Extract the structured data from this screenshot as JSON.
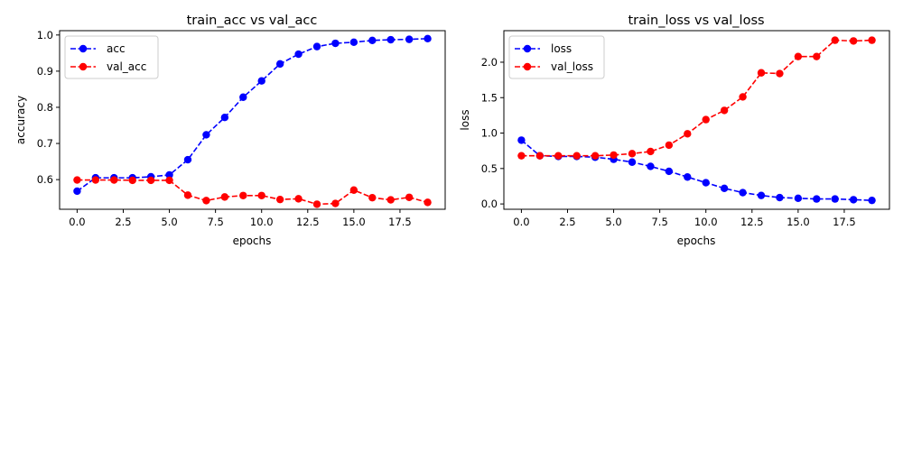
{
  "chart_data": [
    {
      "type": "line",
      "title": "train_acc vs val_acc",
      "xlabel": "epochs",
      "ylabel": "accuracy",
      "xlim": [
        -0.95,
        19.95
      ],
      "ylim": [
        0.518,
        1.012
      ],
      "xticks": [
        0,
        2.5,
        5,
        7.5,
        10,
        12.5,
        15,
        17.5
      ],
      "xtick_labels": [
        "0.0",
        "2.5",
        "5.0",
        "7.5",
        "10.0",
        "12.5",
        "15.0",
        "17.5"
      ],
      "yticks": [
        0.6,
        0.7,
        0.8,
        0.9,
        1.0
      ],
      "ytick_labels": [
        "0.6",
        "0.7",
        "0.8",
        "0.9",
        "1.0"
      ],
      "legend_position": "upper-left",
      "x": [
        0,
        1,
        2,
        3,
        4,
        5,
        6,
        7,
        8,
        9,
        10,
        11,
        12,
        13,
        14,
        15,
        16,
        17,
        18,
        19
      ],
      "series": [
        {
          "name": "acc",
          "color": "#0000ff",
          "values": [
            0.568,
            0.605,
            0.605,
            0.605,
            0.608,
            0.613,
            0.655,
            0.724,
            0.772,
            0.828,
            0.873,
            0.92,
            0.947,
            0.968,
            0.977,
            0.98,
            0.985,
            0.987,
            0.988,
            0.99
          ]
        },
        {
          "name": "val_acc",
          "color": "#ff0000",
          "values": [
            0.599,
            0.599,
            0.599,
            0.598,
            0.598,
            0.598,
            0.557,
            0.542,
            0.552,
            0.556,
            0.556,
            0.545,
            0.547,
            0.532,
            0.534,
            0.571,
            0.55,
            0.544,
            0.551,
            0.537
          ]
        }
      ]
    },
    {
      "type": "line",
      "title": "train_loss vs val_loss",
      "xlabel": "epochs",
      "ylabel": "loss",
      "xlim": [
        -0.95,
        19.95
      ],
      "ylim": [
        -0.075,
        2.445
      ],
      "xticks": [
        0,
        2.5,
        5,
        7.5,
        10,
        12.5,
        15,
        17.5
      ],
      "xtick_labels": [
        "0.0",
        "2.5",
        "5.0",
        "7.5",
        "10.0",
        "12.5",
        "15.0",
        "17.5"
      ],
      "yticks": [
        0,
        0.5,
        1.0,
        1.5,
        2.0
      ],
      "ytick_labels": [
        "0.0",
        "0.5",
        "1.0",
        "1.5",
        "2.0"
      ],
      "legend_position": "upper-left",
      "x": [
        0,
        1,
        2,
        3,
        4,
        5,
        6,
        7,
        8,
        9,
        10,
        11,
        12,
        13,
        14,
        15,
        16,
        17,
        18,
        19
      ],
      "series": [
        {
          "name": "loss",
          "color": "#0000ff",
          "values": [
            0.9,
            0.68,
            0.67,
            0.67,
            0.66,
            0.63,
            0.59,
            0.53,
            0.46,
            0.38,
            0.3,
            0.22,
            0.16,
            0.12,
            0.09,
            0.08,
            0.07,
            0.07,
            0.06,
            0.05
          ]
        },
        {
          "name": "val_loss",
          "color": "#ff0000",
          "values": [
            0.68,
            0.68,
            0.68,
            0.68,
            0.68,
            0.69,
            0.71,
            0.74,
            0.83,
            0.99,
            1.19,
            1.32,
            1.51,
            1.85,
            1.84,
            2.08,
            2.08,
            2.31,
            2.3,
            2.31
          ]
        }
      ]
    }
  ]
}
